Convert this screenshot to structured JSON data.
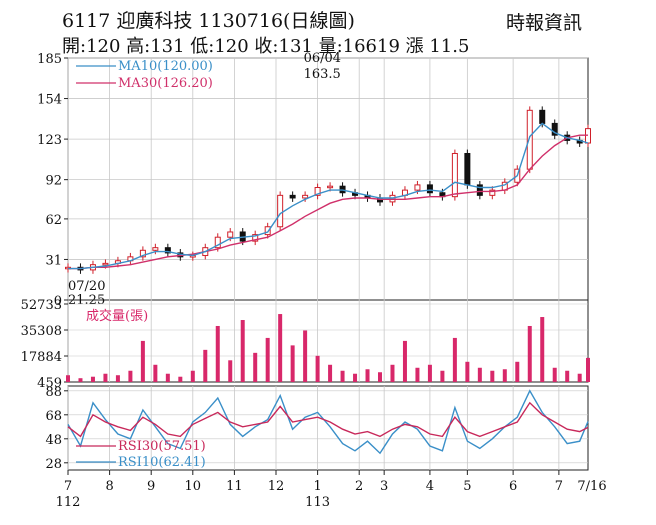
{
  "header": {
    "title": "6117  迎廣科技 1130716(日線圖)",
    "stats": "開:120 高:131 低:120 收:131 量:16619 漲 11.5",
    "source": "時報資訊"
  },
  "colors": {
    "ma10": "#3a8fc8",
    "ma30": "#d0306a",
    "volume": "#d8286a",
    "rsi30": "#c8285a",
    "rsi10": "#3a8fc8",
    "candle_up": "#d0202a",
    "candle_down": "#111111",
    "grid": "#c8c8c8"
  },
  "chart_data": [
    {
      "type": "candlestick",
      "panel": "price",
      "yticks": [
        0,
        31,
        62,
        92,
        123,
        154,
        185
      ],
      "ylim": [
        0,
        185
      ],
      "legend": [
        {
          "name": "MA10(120.00)",
          "color": "#3a8fc8"
        },
        {
          "name": "MA30(126.20)",
          "color": "#d0306a"
        }
      ],
      "annotations": [
        {
          "date_label": "06/04",
          "value_label": "163.5",
          "month_index": 6.0,
          "value": 163.5
        },
        {
          "date_label": "07/20",
          "value_label": "21.25",
          "month_index": 0.15,
          "value": 21.25
        }
      ],
      "x_months": [
        0,
        0.3,
        0.6,
        0.9,
        1.2,
        1.5,
        1.8,
        2.1,
        2.4,
        2.7,
        3.0,
        3.3,
        3.6,
        3.9,
        4.2,
        4.5,
        4.8,
        5.1,
        5.4,
        5.7,
        6.0,
        6.3,
        6.6,
        6.9,
        7.2,
        7.5,
        7.8,
        8.1,
        8.4,
        8.7,
        9.0,
        9.3,
        9.6,
        9.9,
        10.2,
        10.5,
        10.8,
        11.1,
        11.4,
        11.7,
        12.0,
        12.3,
        12.5
      ],
      "close": [
        25,
        23,
        27,
        28,
        30,
        33,
        38,
        40,
        36,
        33,
        34,
        40,
        48,
        52,
        45,
        50,
        56,
        80,
        78,
        80,
        86,
        87,
        82,
        80,
        78,
        75,
        80,
        84,
        88,
        82,
        79,
        112,
        88,
        80,
        84,
        90,
        100,
        145,
        135,
        126,
        122,
        120,
        131
      ],
      "ma10": [
        24,
        24,
        25,
        26,
        28,
        30,
        34,
        37,
        37,
        35,
        34,
        37,
        42,
        47,
        48,
        49,
        52,
        66,
        72,
        77,
        81,
        84,
        84,
        82,
        80,
        78,
        78,
        80,
        83,
        84,
        83,
        90,
        88,
        86,
        86,
        88,
        95,
        125,
        135,
        128,
        124,
        122,
        120
      ],
      "ma30": [
        24,
        24,
        25,
        25,
        26,
        27,
        29,
        31,
        33,
        34,
        35,
        37,
        39,
        42,
        44,
        46,
        48,
        53,
        58,
        64,
        69,
        74,
        77,
        78,
        78,
        77,
        77,
        77,
        78,
        79,
        79,
        81,
        82,
        83,
        83,
        84,
        88,
        100,
        110,
        118,
        124,
        126,
        126
      ]
    },
    {
      "type": "bar",
      "panel": "volume",
      "legend": [
        {
          "name": "成交量(張)",
          "color": "#d8286a"
        }
      ],
      "yticks": [
        459,
        17884,
        35308,
        52733
      ],
      "ylim": [
        459,
        52733
      ],
      "x_months": [
        0,
        0.3,
        0.6,
        0.9,
        1.2,
        1.5,
        1.8,
        2.1,
        2.4,
        2.7,
        3.0,
        3.3,
        3.6,
        3.9,
        4.2,
        4.5,
        4.8,
        5.1,
        5.4,
        5.7,
        6.0,
        6.3,
        6.6,
        6.9,
        7.2,
        7.5,
        7.8,
        8.1,
        8.4,
        8.7,
        9.0,
        9.3,
        9.6,
        9.9,
        10.2,
        10.5,
        10.8,
        11.1,
        11.4,
        11.7,
        12.0,
        12.3,
        12.5
      ],
      "values": [
        5000,
        3000,
        4000,
        6000,
        5000,
        8000,
        28000,
        12000,
        6000,
        4000,
        8000,
        22000,
        38000,
        15000,
        42000,
        20000,
        30000,
        46000,
        25000,
        35000,
        18000,
        12000,
        8000,
        6000,
        9000,
        7000,
        12000,
        28000,
        10000,
        12000,
        8000,
        30000,
        14000,
        10000,
        8000,
        9000,
        14000,
        38000,
        44000,
        10000,
        8000,
        6000,
        16619
      ]
    },
    {
      "type": "line",
      "panel": "rsi",
      "yticks": [
        28,
        48,
        68,
        88
      ],
      "ylim": [
        22,
        92
      ],
      "legend": [
        {
          "name": "RSI30(57.51)",
          "color": "#c8285a"
        },
        {
          "name": "RSI10(62.41)",
          "color": "#3a8fc8"
        }
      ],
      "x_months": [
        0,
        0.3,
        0.6,
        0.9,
        1.2,
        1.5,
        1.8,
        2.1,
        2.4,
        2.7,
        3.0,
        3.3,
        3.6,
        3.9,
        4.2,
        4.5,
        4.8,
        5.1,
        5.4,
        5.7,
        6.0,
        6.3,
        6.6,
        6.9,
        7.2,
        7.5,
        7.8,
        8.1,
        8.4,
        8.7,
        9.0,
        9.3,
        9.6,
        9.9,
        10.2,
        10.5,
        10.8,
        11.1,
        11.4,
        11.7,
        12.0,
        12.3,
        12.5
      ],
      "rsi30": [
        58,
        50,
        68,
        62,
        58,
        55,
        66,
        60,
        52,
        50,
        60,
        65,
        70,
        62,
        58,
        60,
        62,
        75,
        62,
        64,
        66,
        62,
        56,
        52,
        54,
        50,
        56,
        60,
        58,
        52,
        50,
        66,
        54,
        50,
        54,
        58,
        62,
        78,
        68,
        62,
        56,
        54,
        57.51
      ],
      "rsi10": [
        60,
        42,
        78,
        64,
        52,
        48,
        72,
        58,
        44,
        40,
        62,
        70,
        82,
        60,
        50,
        58,
        64,
        84,
        56,
        66,
        70,
        58,
        44,
        38,
        46,
        36,
        52,
        62,
        56,
        42,
        38,
        74,
        46,
        40,
        48,
        58,
        66,
        88,
        70,
        58,
        44,
        46,
        62.41
      ]
    },
    {
      "type": "axis",
      "panel": "x-axis",
      "month_ticks": [
        {
          "pos": 0,
          "label": "7"
        },
        {
          "pos": 1,
          "label": "8"
        },
        {
          "pos": 2,
          "label": "9"
        },
        {
          "pos": 3,
          "label": "10"
        },
        {
          "pos": 4,
          "label": "11"
        },
        {
          "pos": 5,
          "label": "12"
        },
        {
          "pos": 6,
          "label": "1"
        },
        {
          "pos": 7,
          "label": "2"
        },
        {
          "pos": 7.6,
          "label": "3"
        },
        {
          "pos": 8.7,
          "label": "4"
        },
        {
          "pos": 9.6,
          "label": "5"
        },
        {
          "pos": 10.7,
          "label": "6"
        },
        {
          "pos": 11.8,
          "label": "7"
        }
      ],
      "end_label": "7/16",
      "year_labels": [
        {
          "pos": 0,
          "label": "112"
        },
        {
          "pos": 6,
          "label": "113"
        }
      ]
    }
  ]
}
